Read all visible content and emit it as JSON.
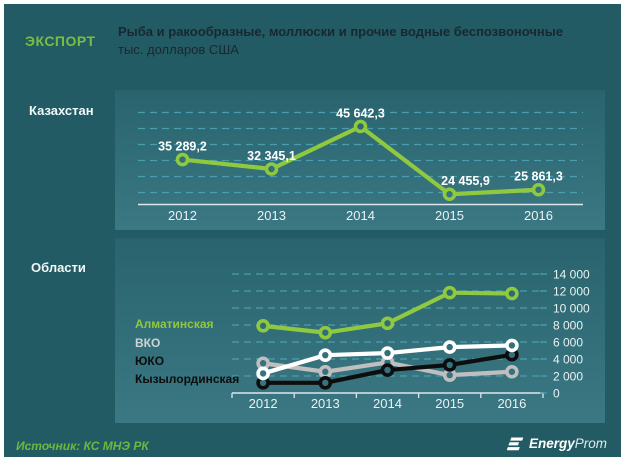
{
  "header": {
    "kicker": "ЭКСПОРТ",
    "title": "Рыба и ракообразные, моллюски и прочие водные беспозвоночные",
    "subtitle": "тыс. долларов США"
  },
  "row_labels": {
    "kazakhstan": "Казахстан",
    "oblasti": "Области"
  },
  "footer": {
    "source": "Источник: КС МНЭ РК",
    "logo_bold": "Energy",
    "logo_light": "Prom"
  },
  "colors": {
    "background": "#235B64",
    "panel_top": "#29646E",
    "panel_bottom": "#3B7883",
    "accent_green": "#8FC93F",
    "kicker_green": "#79BE41",
    "source_green": "#6CB83F",
    "gridline": "#4FA3B5",
    "axis": "#DDE6E9",
    "title_text": "#182830",
    "label_white": "#EAF2F3"
  },
  "chart_data": [
    {
      "type": "line",
      "title": "Казахстан",
      "categories": [
        "2012",
        "2013",
        "2014",
        "2015",
        "2016"
      ],
      "series": [
        {
          "name": "Казахстан",
          "color": "#8FC93F",
          "values": [
            35289.2,
            32345.1,
            45642.3,
            24455.9,
            25861.3
          ]
        }
      ],
      "data_labels": [
        "35 289,2",
        "32 345,1",
        "45 642,3",
        "24 455,9",
        "25 861,3"
      ],
      "label_dx": [
        0,
        0,
        0,
        16,
        0
      ],
      "ylabel": "тыс. долларов США",
      "ylim": [
        21250,
        53600
      ],
      "gridline_values": [
        25000,
        30000,
        35000,
        40000,
        45000,
        50000
      ],
      "grid": "dashed",
      "legend_position": "none",
      "x_ticks": false,
      "right_axis": false
    },
    {
      "type": "line",
      "title": "Области",
      "categories": [
        "2012",
        "2013",
        "2014",
        "2015",
        "2016"
      ],
      "series": [
        {
          "name": "Алматинская",
          "color": "#8FC93F",
          "legend_color": "#8FC93F",
          "values": [
            7900,
            7100,
            8200,
            11800,
            11700
          ]
        },
        {
          "name": "ВКО",
          "color": "#FFFFFF",
          "legend_color": "#CDD4D6",
          "values": [
            2300,
            4450,
            4700,
            5400,
            5600
          ]
        },
        {
          "name": "ЮКО",
          "color": "#0D0D0D",
          "legend_color": "#0D0D0D",
          "values": [
            1200,
            1200,
            2700,
            3300,
            4500
          ]
        },
        {
          "name": "Кызылординская",
          "color": "#BFBFBF",
          "legend_color": "#0D0D0D",
          "values": [
            3500,
            2500,
            3600,
            2100,
            2500
          ]
        }
      ],
      "ylim": [
        0,
        14000
      ],
      "ytick_values": [
        0,
        2000,
        4000,
        6000,
        8000,
        10000,
        12000,
        14000
      ],
      "ytick_labels": [
        "0",
        "2 000",
        "4 000",
        "6 000",
        "8 000",
        "10 000",
        "12 000",
        "14 000"
      ],
      "grid": "dashed",
      "legend_position": "left",
      "x_ticks": true,
      "right_axis": true
    }
  ]
}
